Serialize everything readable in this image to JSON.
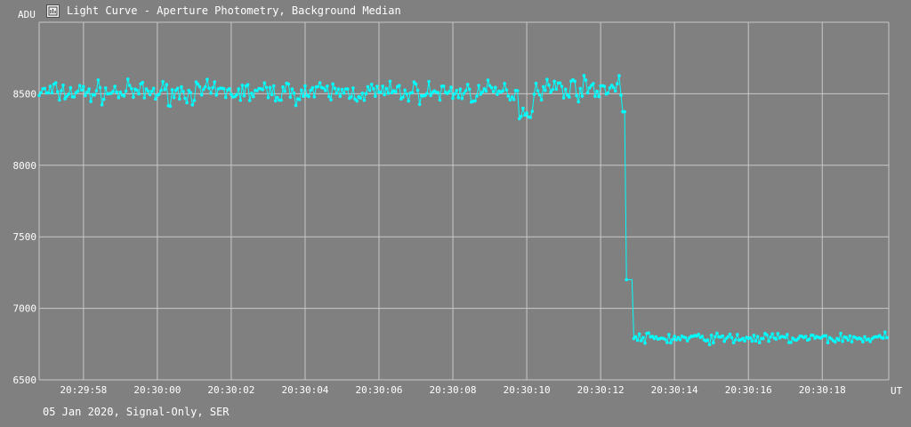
{
  "window": {
    "title": "Light Curve - Aperture Photometry, Background Median",
    "icon": "chart-app-icon"
  },
  "footer_text": "05 Jan 2020, Signal-Only, SER",
  "colors": {
    "background": "#808080",
    "grid": "#c8c8c8",
    "series": "#00ffff",
    "text": "#ffffff"
  },
  "chart_data": {
    "type": "line",
    "ylabel": "ADU",
    "xlabel": "UT",
    "ylim": [
      6500,
      9000
    ],
    "xlim": [
      "20:29:56.8",
      "20:30:19.8"
    ],
    "yticks": [
      6500,
      7000,
      7500,
      8000,
      8500
    ],
    "xticks": [
      "20:29:58",
      "20:30:00",
      "20:30:02",
      "20:30:04",
      "20:30:06",
      "20:30:08",
      "20:30:10",
      "20:30:12",
      "20:30:14",
      "20:30:16",
      "20:30:18"
    ],
    "grid": true,
    "markers": true,
    "series": [
      {
        "segments": [
          {
            "x_start": "20:29:56.8",
            "x_end": "20:30:09.8",
            "mean": 8510,
            "spread": 70
          },
          {
            "x_start": "20:30:09.8",
            "x_end": "20:30:10.2",
            "mean": 8370,
            "spread": 50
          },
          {
            "x_start": "20:30:10.2",
            "x_end": "20:30:12.6",
            "mean": 8540,
            "spread": 70
          },
          {
            "x_start": "20:30:12.6",
            "x_end": "20:30:12.7",
            "mean": 8380,
            "spread": 20
          },
          {
            "x_start": "20:30:12.7",
            "x_end": "20:30:12.9",
            "mean": 7200,
            "spread": 0
          },
          {
            "x_start": "20:30:12.9",
            "x_end": "20:30:19.8",
            "mean": 6790,
            "spread": 35
          }
        ],
        "drop": {
          "x": "20:30:12.8",
          "from": 8450,
          "to": 6800
        }
      }
    ]
  }
}
